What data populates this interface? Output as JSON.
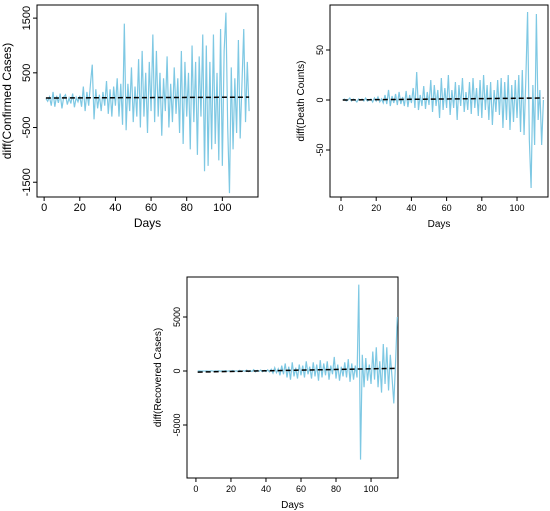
{
  "chart_data": [
    {
      "type": "line",
      "ylabel": "diff(Confirmed Cases)",
      "xlabel": "Days",
      "x": [
        1,
        2,
        3,
        4,
        5,
        6,
        7,
        8,
        9,
        10,
        11,
        12,
        13,
        14,
        15,
        16,
        17,
        18,
        19,
        20,
        21,
        22,
        23,
        24,
        25,
        26,
        27,
        28,
        29,
        30,
        31,
        32,
        33,
        34,
        35,
        36,
        37,
        38,
        39,
        40,
        41,
        42,
        43,
        44,
        45,
        46,
        47,
        48,
        49,
        50,
        51,
        52,
        53,
        54,
        55,
        56,
        57,
        58,
        59,
        60,
        61,
        62,
        63,
        64,
        65,
        66,
        67,
        68,
        69,
        70,
        71,
        72,
        73,
        74,
        75,
        76,
        77,
        78,
        79,
        80,
        81,
        82,
        83,
        84,
        85,
        86,
        87,
        88,
        89,
        90,
        91,
        92,
        93,
        94,
        95,
        96,
        97,
        98,
        99,
        100,
        101,
        102,
        103,
        104,
        105,
        106,
        107,
        108,
        109,
        110,
        111,
        112,
        113,
        114,
        115
      ],
      "series": [
        {
          "color": "#7ec8e3",
          "values": [
            30,
            -20,
            60,
            -100,
            150,
            -120,
            80,
            -50,
            120,
            -150,
            60,
            100,
            -80,
            40,
            -60,
            120,
            -130,
            50,
            -30,
            80,
            -120,
            250,
            -200,
            150,
            -100,
            300,
            650,
            -350,
            200,
            -150,
            100,
            -200,
            150,
            -100,
            350,
            -250,
            200,
            -300,
            250,
            -100,
            400,
            -300,
            300,
            -450,
            1400,
            -550,
            300,
            -200,
            600,
            -400,
            250,
            -300,
            750,
            -500,
            900,
            -300,
            500,
            -600,
            700,
            -200,
            1200,
            -400,
            900,
            -300,
            500,
            -650,
            400,
            -200,
            800,
            -500,
            300,
            -400,
            600,
            -250,
            400,
            -600,
            900,
            -800,
            700,
            -300,
            500,
            -900,
            1000,
            -400,
            700,
            -1000,
            800,
            -300,
            1200,
            -1300,
            1000,
            -1200,
            700,
            -900,
            1200,
            -800,
            500,
            -1100,
            1300,
            -1200,
            900,
            1600,
            -500,
            -1700,
            600,
            -900,
            400,
            -600,
            1100,
            -700,
            300,
            1300,
            -400,
            700,
            -200
          ]
        }
      ],
      "trend": {
        "x": [
          1,
          115
        ],
        "values": [
          40,
          55
        ],
        "color": "#000000"
      },
      "xlim": [
        -4,
        120
      ],
      "xticks": [
        0,
        20,
        40,
        60,
        80,
        100
      ],
      "ylim": [
        -1770,
        1740
      ],
      "yticks": [
        -1500,
        -500,
        500,
        1500
      ]
    },
    {
      "type": "line",
      "ylabel": "diff(Death Counts)",
      "xlabel": "Days",
      "x": [
        1,
        2,
        3,
        4,
        5,
        6,
        7,
        8,
        9,
        10,
        11,
        12,
        13,
        14,
        15,
        16,
        17,
        18,
        19,
        20,
        21,
        22,
        23,
        24,
        25,
        26,
        27,
        28,
        29,
        30,
        31,
        32,
        33,
        34,
        35,
        36,
        37,
        38,
        39,
        40,
        41,
        42,
        43,
        44,
        45,
        46,
        47,
        48,
        49,
        50,
        51,
        52,
        53,
        54,
        55,
        56,
        57,
        58,
        59,
        60,
        61,
        62,
        63,
        64,
        65,
        66,
        67,
        68,
        69,
        70,
        71,
        72,
        73,
        74,
        75,
        76,
        77,
        78,
        79,
        80,
        81,
        82,
        83,
        84,
        85,
        86,
        87,
        88,
        89,
        90,
        91,
        92,
        93,
        94,
        95,
        96,
        97,
        98,
        99,
        100,
        101,
        102,
        103,
        104,
        105,
        106,
        107,
        108,
        109,
        110,
        111,
        112,
        113,
        114,
        115
      ],
      "series": [
        {
          "color": "#7ec8e3",
          "values": [
            0,
            1,
            -1,
            0,
            2,
            -1,
            1,
            0,
            -2,
            1,
            0,
            1,
            -1,
            2,
            -1,
            0,
            1,
            -2,
            2,
            -1,
            3,
            -2,
            1,
            -3,
            5,
            -4,
            10,
            -6,
            4,
            -3,
            6,
            -5,
            8,
            -4,
            3,
            -6,
            9,
            -7,
            5,
            -3,
            12,
            -8,
            28,
            -10,
            5,
            -6,
            14,
            -9,
            8,
            -5,
            20,
            -12,
            15,
            -6,
            10,
            -18,
            22,
            -10,
            12,
            -8,
            25,
            -15,
            10,
            -8,
            18,
            -20,
            15,
            -6,
            22,
            -12,
            8,
            -10,
            18,
            -14,
            22,
            -8,
            12,
            -16,
            20,
            -18,
            25,
            -10,
            15,
            -20,
            18,
            -25,
            10,
            -12,
            20,
            -15,
            22,
            -28,
            18,
            -20,
            25,
            -30,
            15,
            -22,
            20,
            -18,
            25,
            -32,
            30,
            -35,
            20,
            88,
            -40,
            -88,
            15,
            -45,
            86,
            -20,
            10,
            -45,
            0
          ]
        }
      ],
      "trend": {
        "x": [
          1,
          115
        ],
        "values": [
          0,
          2
        ],
        "color": "#000000"
      },
      "xlim": [
        -6.25,
        117.6
      ],
      "xticks": [
        0,
        20,
        40,
        60,
        80,
        100
      ],
      "ylim": [
        -97,
        95
      ],
      "yticks": [
        -50,
        0,
        50
      ]
    },
    {
      "type": "line",
      "ylabel": "diff(Recovered Cases)",
      "xlabel": "Days",
      "x": [
        1,
        2,
        3,
        4,
        5,
        6,
        7,
        8,
        9,
        10,
        11,
        12,
        13,
        14,
        15,
        16,
        17,
        18,
        19,
        20,
        21,
        22,
        23,
        24,
        25,
        26,
        27,
        28,
        29,
        30,
        31,
        32,
        33,
        34,
        35,
        36,
        37,
        38,
        39,
        40,
        41,
        42,
        43,
        44,
        45,
        46,
        47,
        48,
        49,
        50,
        51,
        52,
        53,
        54,
        55,
        56,
        57,
        58,
        59,
        60,
        61,
        62,
        63,
        64,
        65,
        66,
        67,
        68,
        69,
        70,
        71,
        72,
        73,
        74,
        75,
        76,
        77,
        78,
        79,
        80,
        81,
        82,
        83,
        84,
        85,
        86,
        87,
        88,
        89,
        90,
        91,
        92,
        93,
        94,
        95,
        96,
        97,
        98,
        99,
        100,
        101,
        102,
        103,
        104,
        105,
        106,
        107,
        108,
        109,
        110,
        111,
        112,
        113,
        114,
        115
      ],
      "series": [
        {
          "color": "#7ec8e3",
          "values": [
            0,
            10,
            -10,
            5,
            -5,
            10,
            -10,
            0,
            15,
            -15,
            10,
            -5,
            20,
            -20,
            10,
            -10,
            30,
            -25,
            15,
            -10,
            40,
            -30,
            20,
            -40,
            60,
            -50,
            30,
            -20,
            80,
            -60,
            40,
            -50,
            120,
            -80,
            60,
            -40,
            90,
            -70,
            50,
            -60,
            100,
            -80,
            150,
            -200,
            300,
            -150,
            200,
            -400,
            500,
            -300,
            700,
            -600,
            400,
            -800,
            800,
            -500,
            300,
            -700,
            600,
            -400,
            500,
            -600,
            900,
            -300,
            400,
            -700,
            800,
            -500,
            600,
            -900,
            1000,
            -600,
            700,
            -400,
            900,
            -800,
            500,
            -300,
            1300,
            -700,
            600,
            -900,
            400,
            -500,
            800,
            -600,
            1100,
            -1000,
            700,
            -800,
            500,
            -600,
            8000,
            -8200,
            1500,
            -1500,
            1200,
            -900,
            600,
            -1200,
            1800,
            -800,
            2200,
            -1500,
            900,
            -2000,
            2500,
            -1200,
            2200,
            -1800,
            1500,
            -600,
            -3000,
            800,
            5000
          ]
        }
      ],
      "trend": {
        "x": [
          1,
          115
        ],
        "values": [
          -100,
          250
        ],
        "color": "#000000"
      },
      "xlim": [
        -5.1,
        115.4
      ],
      "xticks": [
        0,
        20,
        40,
        60,
        80,
        100
      ],
      "ylim": [
        -9907,
        8704
      ],
      "yticks": [
        -5000,
        0,
        5000
      ]
    }
  ]
}
